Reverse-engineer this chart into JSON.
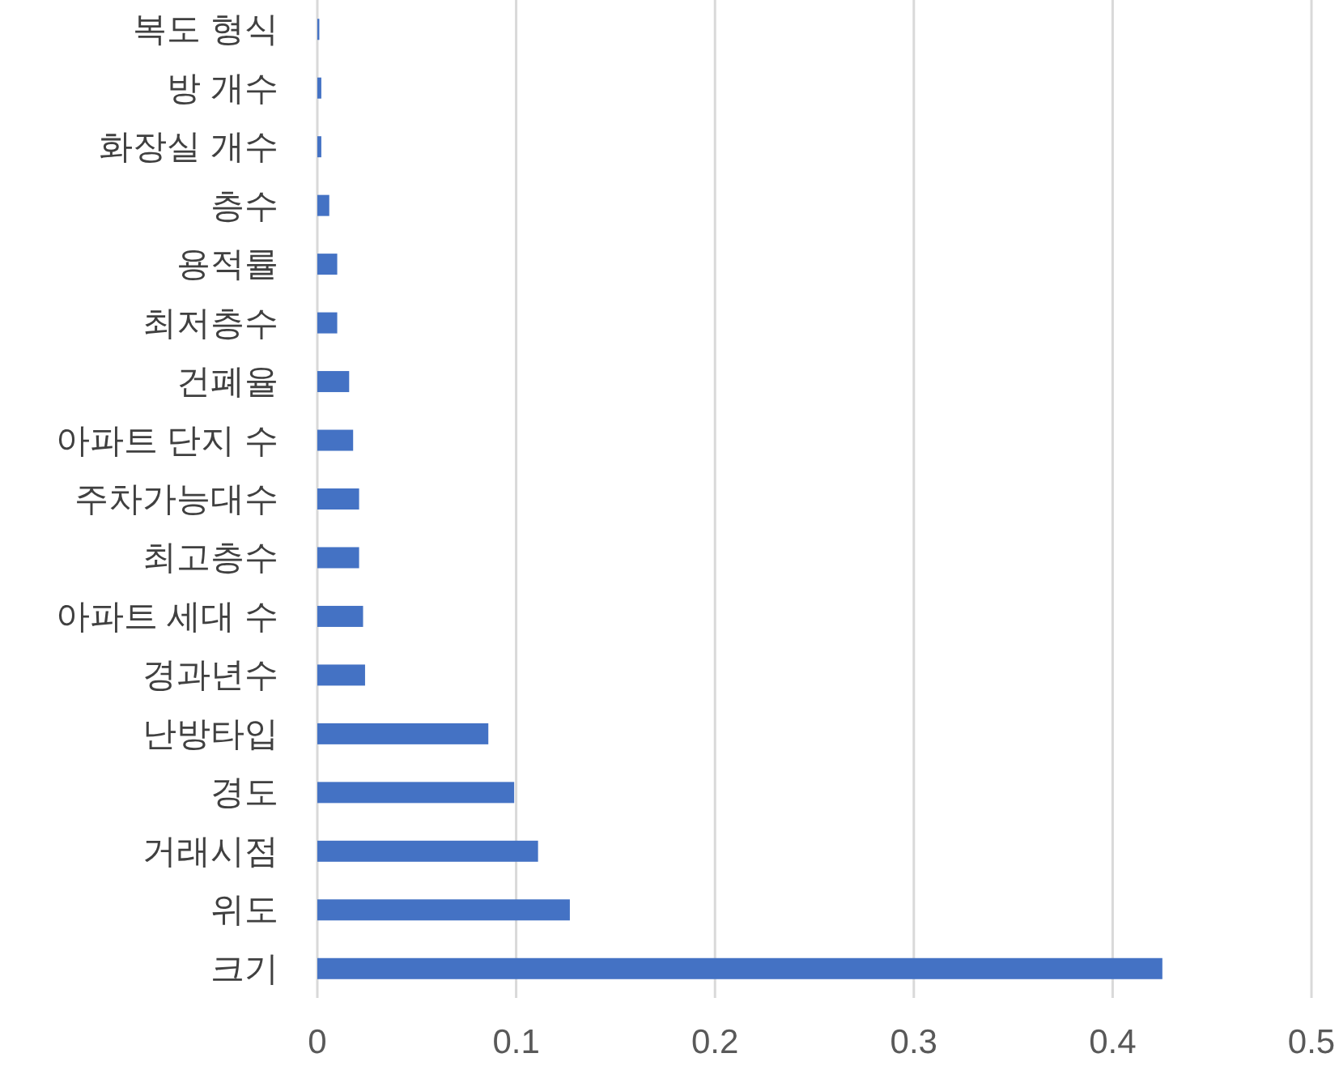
{
  "chart_data": {
    "type": "bar",
    "orientation": "horizontal",
    "categories": [
      "복도 형식",
      "방 개수",
      "화장실 개수",
      "층수",
      "용적률",
      "최저층수",
      "건폐율",
      "아파트 단지 수",
      "주차가능대수",
      "최고층수",
      "아파트 세대 수",
      "경과년수",
      "난방타입",
      "경도",
      "거래시점",
      "위도",
      "크기"
    ],
    "values": [
      0.001,
      0.002,
      0.002,
      0.006,
      0.01,
      0.01,
      0.016,
      0.018,
      0.021,
      0.021,
      0.023,
      0.024,
      0.086,
      0.099,
      0.111,
      0.127,
      0.425
    ],
    "color": "#4472c4",
    "xlim": [
      0,
      0.5
    ],
    "xticks": [
      0,
      0.1,
      0.2,
      0.3,
      0.4,
      0.5
    ],
    "grid": "x"
  }
}
